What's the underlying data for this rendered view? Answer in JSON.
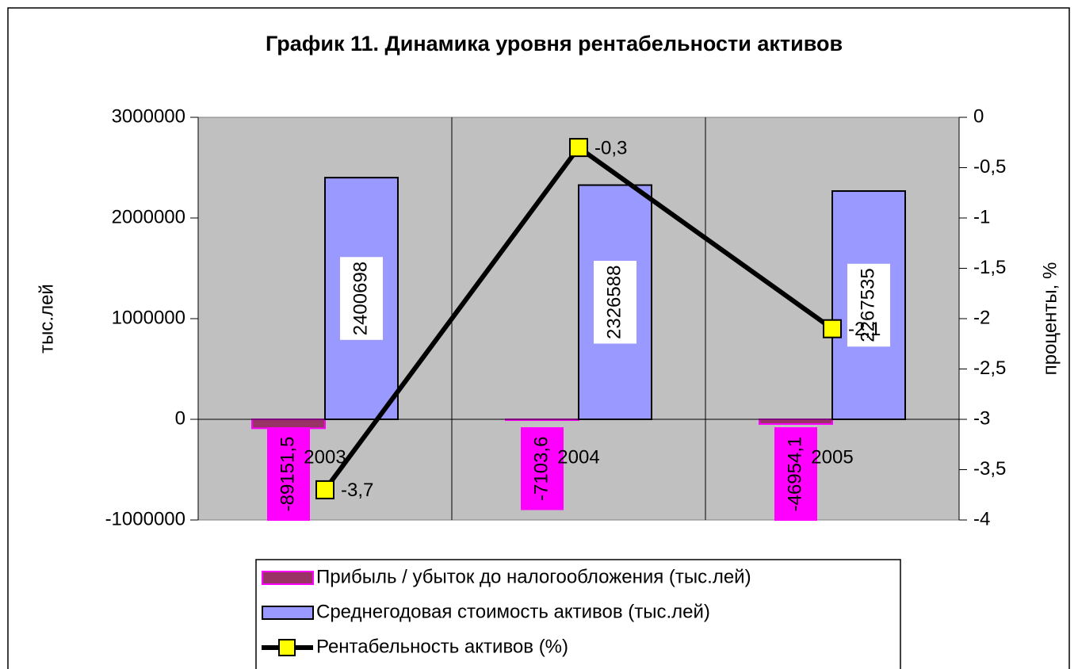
{
  "chart_data": {
    "type": "bar",
    "title": "График 11. Динамика уровня рентабельности активов",
    "y_label": "тыс.лей",
    "y2_label": "проценты, %",
    "categories": [
      "2003",
      "2004",
      "2005"
    ],
    "series": [
      {
        "name": "Прибыль / убыток до налогообложения (тыс.лей)",
        "color": "#993366",
        "edge": "#ff00ff",
        "label_box": "#ff00ff",
        "values": [
          -89151.5,
          -7103.6,
          -46954.1
        ],
        "value_labels": [
          "-89151,5",
          "-7103,6",
          "-46954,1"
        ]
      },
      {
        "name": "Среднегодовая стоимость активов (тыс.лей)",
        "color": "#9999ff",
        "edge": "#000000",
        "label_box": "#ffffff",
        "values": [
          2400698,
          2326588,
          2267535
        ]
      },
      {
        "name": "Рентабельность активов (%)",
        "type": "line",
        "axis": "y2",
        "color": "#000000",
        "marker_color": "#ffff00",
        "values": [
          -3.7,
          -0.3,
          -2.1
        ],
        "value_labels": [
          "-3,7",
          "-0,3",
          "-2,1"
        ]
      }
    ],
    "ylim": [
      -1000000,
      3000000
    ],
    "yticks": [
      -1000000,
      0,
      1000000,
      2000000,
      3000000
    ],
    "y2lim": [
      -4,
      0
    ],
    "y2ticks": [
      -4,
      {
        "value": -3.5,
        "label": "-3,5"
      },
      -3,
      {
        "value": -2.5,
        "label": "-2,5"
      },
      -2,
      {
        "value": -1.5,
        "label": "-1,5"
      },
      -1,
      {
        "value": -0.5,
        "label": "-0,5"
      },
      0
    ],
    "plot_background": "#c0c0c0",
    "legend": "bottom"
  }
}
